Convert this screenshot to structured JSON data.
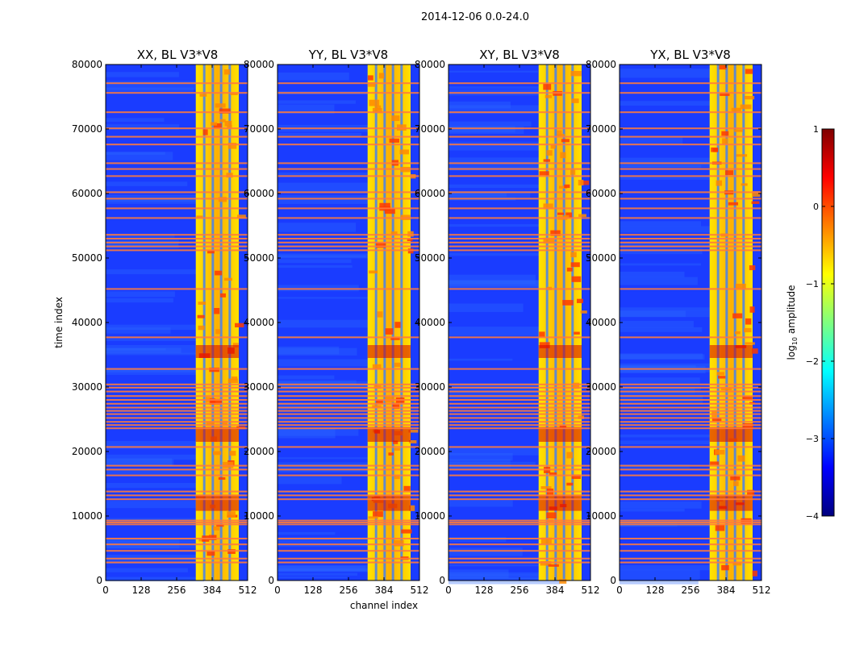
{
  "figure": {
    "suptitle": "2014-12-06 0.0-24.0",
    "ylabel": "time index",
    "xlabel": "channel index"
  },
  "colorbar": {
    "label_main": "log",
    "label_sub": "10",
    "label_rest": " amplitude",
    "ticks": [
      "1",
      "0",
      "−1",
      "−2",
      "−3",
      "−4"
    ],
    "range": [
      -4,
      1
    ],
    "stops": [
      "#00007f",
      "#0000ff",
      "#007fff",
      "#00ffff",
      "#7fff7f",
      "#ffff00",
      "#ff7f00",
      "#ff0000",
      "#7f0000"
    ]
  },
  "chart_data": {
    "type": "heatmap",
    "colormap": "jet",
    "value": "log10 amplitude",
    "x_ticks": [
      "0",
      "128",
      "256",
      "384",
      "512"
    ],
    "y_ticks": [
      "0",
      "10000",
      "20000",
      "30000",
      "40000",
      "50000",
      "60000",
      "70000",
      "80000"
    ],
    "xlim": [
      0,
      512
    ],
    "ylim": [
      0,
      80000
    ],
    "high_amplitude_channel_band": [
      325,
      480
    ],
    "flagged_time_rows": [
      2800,
      3400,
      4600,
      5600,
      6500,
      8700,
      9000,
      9300,
      12600,
      13200,
      13800,
      16300,
      17200,
      17800,
      20700,
      23600,
      24100,
      24600,
      25200,
      25800,
      26300,
      26800,
      27400,
      28000,
      28600,
      29300,
      29900,
      30400,
      32800,
      37700,
      45200,
      51200,
      51800,
      52400,
      53000,
      53600,
      56200,
      57700,
      59200,
      60200,
      62700,
      63800,
      64700,
      67600,
      68800,
      70100,
      72600,
      75600,
      77100
    ],
    "panels": [
      {
        "title": "XX, BL V3*V8",
        "key": "XX"
      },
      {
        "title": "YY, BL V3*V8",
        "key": "YY"
      },
      {
        "title": "XY, BL V3*V8",
        "key": "XY"
      },
      {
        "title": "YX, BL V3*V8",
        "key": "YX"
      }
    ]
  }
}
